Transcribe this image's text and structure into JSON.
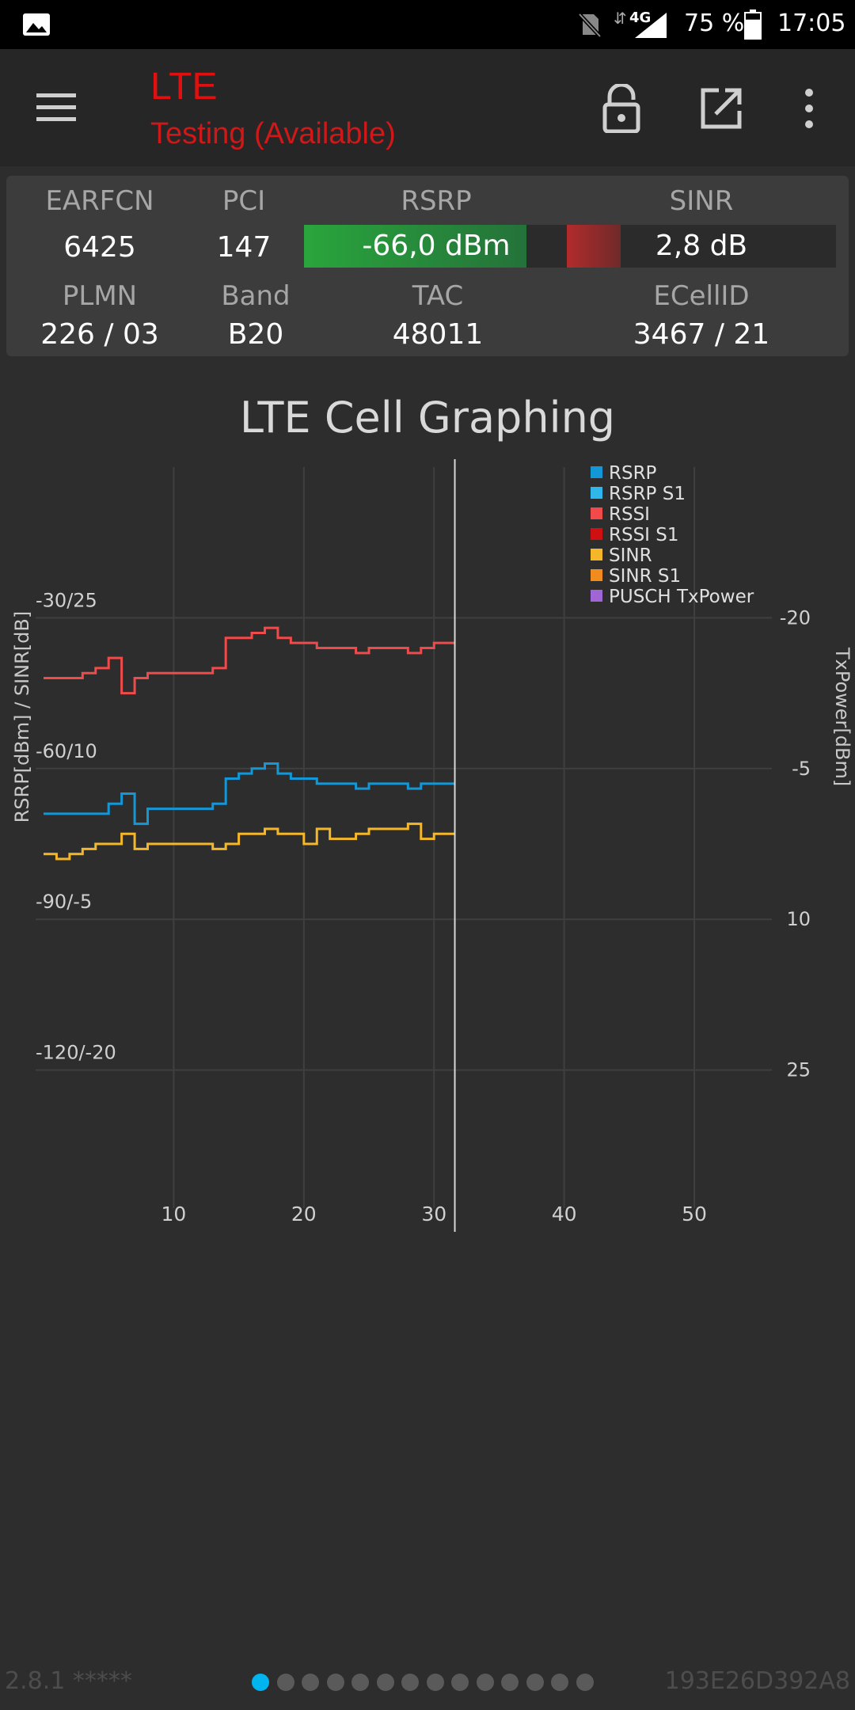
{
  "status_bar": {
    "network_type": "4G",
    "battery_percent": "75 %",
    "battery_level": 0.75,
    "time": "17:05",
    "icons": [
      "gallery-icon",
      "no-sim-icon",
      "data-arrows-icon",
      "signal-icon",
      "battery-icon"
    ]
  },
  "app_bar": {
    "title": "LTE",
    "subtitle": "Testing (Available)",
    "title_color": "#e01010",
    "icons": [
      "menu-icon",
      "lock-icon",
      "open-external-icon",
      "more-vert-icon"
    ]
  },
  "cell_info": {
    "earfcn_label": "EARFCN",
    "earfcn": "6425",
    "pci_label": "PCI",
    "pci": "147",
    "rsrp_label": "RSRP",
    "rsrp": "-66,0 dBm",
    "rsrp_level": 0.84,
    "rsrp_color": "#2aa53c",
    "sinr_label": "SINR",
    "sinr": "2,8 dB",
    "sinr_level": 0.2,
    "sinr_color": "#b32b2b",
    "plmn_label": "PLMN",
    "plmn": "226 / 03",
    "band_label": "Band",
    "band": "B20",
    "tac_label": "TAC",
    "tac": "48011",
    "ecellid_label": "ECellID",
    "ecellid": "3467 / 21"
  },
  "chart_title": "LTE Cell Graphing",
  "chart_data": {
    "type": "line",
    "title": "LTE Cell Graphing",
    "xlabel": "",
    "ylabel": "RSRP[dBm] / SINR[dB]",
    "y2label": "TxPower[dBm]",
    "xlim": [
      0,
      59
    ],
    "ylim": [
      -150,
      0
    ],
    "y2lim": [
      -35,
      40
    ],
    "x_ticks": [
      10,
      20,
      30,
      40,
      50
    ],
    "y_ticks": [
      {
        "value": -30,
        "label": "-30/25"
      },
      {
        "value": -60,
        "label": "-60/10"
      },
      {
        "value": -90,
        "label": "-90/-5"
      },
      {
        "value": -120,
        "label": "-120/-20"
      }
    ],
    "y2_ticks": [
      {
        "value": -20,
        "label": "-20"
      },
      {
        "value": -5,
        "label": "-5"
      },
      {
        "value": 10,
        "label": "10"
      },
      {
        "value": 25,
        "label": "25"
      }
    ],
    "cursor_x": 31.6,
    "grid": true,
    "legend_position": "top-right",
    "series": [
      {
        "name": "RSRP",
        "color": "#1497d6",
        "x": [
          0,
          2,
          5,
          6,
          7,
          8,
          10,
          12,
          13,
          14,
          15,
          16,
          17,
          18,
          19,
          20,
          21,
          22,
          24,
          25,
          27,
          28,
          29,
          30,
          31,
          31.6
        ],
        "y": [
          -69,
          -69,
          -67,
          -65,
          -71,
          -68,
          -68,
          -68,
          -67,
          -62,
          -61,
          -60,
          -59,
          -61,
          -62,
          -62,
          -63,
          -63,
          -64,
          -63,
          -63,
          -64,
          -63,
          -63,
          -63,
          -63
        ]
      },
      {
        "name": "RSRP S1",
        "color": "#2fb6ea",
        "x": [],
        "y": []
      },
      {
        "name": "RSSI",
        "color": "#f04a4a",
        "x": [
          0,
          2,
          3,
          4,
          5,
          6,
          7,
          8,
          10,
          12,
          13,
          14,
          15,
          16,
          17,
          18,
          19,
          20,
          21,
          22,
          24,
          25,
          27,
          28,
          29,
          30,
          31,
          31.6
        ],
        "y": [
          -42,
          -42,
          -41,
          -40,
          -38,
          -45,
          -42,
          -41,
          -41,
          -41,
          -40,
          -34,
          -34,
          -33,
          -32,
          -34,
          -35,
          -35,
          -36,
          -36,
          -37,
          -36,
          -36,
          -37,
          -36,
          -35,
          -35,
          -35
        ]
      },
      {
        "name": "RSSI S1",
        "color": "#d01010",
        "x": [],
        "y": []
      },
      {
        "name": "SINR",
        "color": "#f5b72a",
        "x": [
          0,
          1,
          2,
          3,
          4,
          5,
          6,
          7,
          8,
          10,
          12,
          13,
          14,
          15,
          16,
          17,
          18,
          19,
          20,
          21,
          22,
          24,
          25,
          27,
          28,
          29,
          30,
          31,
          31.6
        ],
        "y": [
          -77,
          -78,
          -77,
          -76,
          -75,
          -75,
          -73,
          -76,
          -75,
          -75,
          -75,
          -76,
          -75,
          -73,
          -73,
          -72,
          -73,
          -73,
          -75,
          -72,
          -74,
          -73,
          -72,
          -72,
          -71,
          -74,
          -73,
          -73,
          -73
        ]
      },
      {
        "name": "SINR S1",
        "color": "#f08c1e",
        "x": [],
        "y": []
      },
      {
        "name": "PUSCH TxPower",
        "color": "#a066d6",
        "x": [],
        "y": []
      }
    ]
  },
  "footer": {
    "version": "2.8.1 *****",
    "device_id": "193E26D392A8",
    "page_count": 14,
    "active_page": 0
  }
}
